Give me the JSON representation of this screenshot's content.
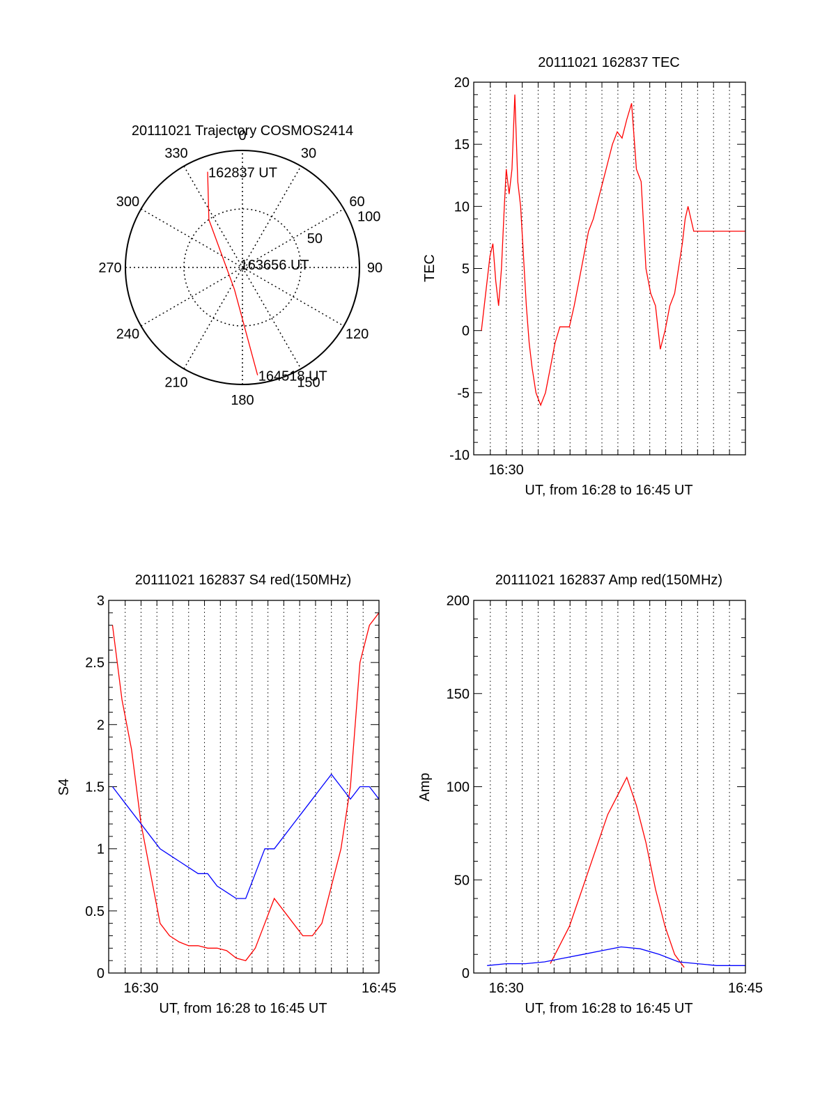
{
  "chart_data": [
    {
      "type": "polar",
      "title": "20111021 Trajectory COSMOS2414",
      "azimuth_labels": [
        "0",
        "30",
        "60",
        "90",
        "120",
        "150",
        "180",
        "210",
        "240",
        "270",
        "300",
        "330"
      ],
      "elevation_ring_labels": [
        "50",
        "100"
      ],
      "elevation_rings": [
        50,
        100
      ],
      "elevation_max": 100,
      "trajectory": {
        "color": "#ff0000",
        "points": [
          {
            "az": 340,
            "r": 87
          },
          {
            "az": 325,
            "r": 50
          },
          {
            "az": 200,
            "r": 20
          },
          {
            "az": 172,
            "r": 93
          }
        ],
        "labels": [
          {
            "text": "162837 UT",
            "az": 340,
            "r": 87
          },
          {
            "text": "163656 UT",
            "az": 320,
            "r": 4
          },
          {
            "text": "164518 UT",
            "az": 172,
            "r": 93
          }
        ]
      }
    },
    {
      "type": "line",
      "title": "20111021 162837 TEC",
      "xlabel": "UT, from 16:28 to 16:45 UT",
      "ylabel": "TEC",
      "xlim": [
        16.466,
        16.75
      ],
      "ylim": [
        -10,
        20
      ],
      "yticks": [
        "-10",
        "-5",
        "0",
        "5",
        "10",
        "15",
        "20"
      ],
      "xtick_labels": [
        {
          "x": 16.5,
          "label": "16:30"
        }
      ],
      "grid": true,
      "series": [
        {
          "color": "#ff0000",
          "x": [
            16.474,
            16.477,
            16.48,
            16.483,
            16.486,
            16.489,
            16.492,
            16.495,
            16.498,
            16.5,
            16.503,
            16.506,
            16.509,
            16.512,
            16.515,
            16.518,
            16.521,
            16.524,
            16.527,
            16.531,
            16.536,
            16.541,
            16.546,
            16.551,
            16.556,
            16.561,
            16.566,
            16.571,
            16.576,
            16.581,
            16.586,
            16.591,
            16.596,
            16.601,
            16.606,
            16.611,
            16.616,
            16.621,
            16.626,
            16.631,
            16.636,
            16.641,
            16.646,
            16.651,
            16.656,
            16.661,
            16.666,
            16.671,
            16.676,
            16.68,
            16.684,
            16.687,
            16.69,
            16.693,
            16.696,
            16.7,
            16.704,
            16.708,
            16.711,
            16.714,
            16.717,
            16.72,
            16.724,
            16.728,
            16.732,
            16.736,
            16.74,
            16.744,
            16.748,
            16.75
          ],
          "y": [
            0,
            2,
            4,
            6,
            7,
            4,
            2,
            5,
            10,
            13,
            11,
            13,
            19,
            12,
            10,
            6,
            2,
            -1,
            -3,
            -5,
            -6,
            -5,
            -3,
            -1,
            0.3,
            0.3,
            0.3,
            2,
            4,
            6,
            8,
            9,
            10.5,
            12,
            13.5,
            15,
            16,
            15.5,
            17,
            18.3,
            13,
            12,
            5,
            3,
            2,
            -1.5,
            0,
            2,
            3,
            5,
            7,
            9,
            10,
            9,
            8,
            8,
            8,
            8,
            8,
            8,
            8,
            8,
            8,
            8,
            8,
            8,
            8,
            8,
            8,
            8
          ]
        }
      ]
    },
    {
      "type": "line",
      "title": "20111021 162837 S4 red(150MHz)",
      "xlabel": "UT, from 16:28 to 16:45 UT",
      "ylabel": "S4",
      "xlim": [
        16.466,
        16.75
      ],
      "ylim": [
        0,
        3
      ],
      "yticks": [
        "0",
        "0.5",
        "1",
        "1.5",
        "2",
        "2.5",
        "3"
      ],
      "xtick_labels": [
        {
          "x": 16.5,
          "label": "16:30"
        },
        {
          "x": 16.75,
          "label": "16:45"
        }
      ],
      "grid": true,
      "series": [
        {
          "color": "#ff0000",
          "x": [
            16.47,
            16.48,
            16.49,
            16.5,
            16.51,
            16.52,
            16.53,
            16.54,
            16.55,
            16.56,
            16.57,
            16.58,
            16.59,
            16.6,
            16.61,
            16.62,
            16.63,
            16.64,
            16.65,
            16.66,
            16.67,
            16.68,
            16.69,
            16.7,
            16.71,
            16.72,
            16.73,
            16.74,
            16.75
          ],
          "y": [
            2.8,
            2.2,
            1.8,
            1.2,
            0.8,
            0.4,
            0.3,
            0.25,
            0.22,
            0.22,
            0.2,
            0.2,
            0.18,
            0.12,
            0.1,
            0.2,
            0.4,
            0.6,
            0.5,
            0.4,
            0.3,
            0.3,
            0.4,
            0.7,
            1.0,
            1.5,
            2.5,
            2.8,
            2.9
          ]
        },
        {
          "color": "#0000ff",
          "x": [
            16.47,
            16.48,
            16.49,
            16.5,
            16.51,
            16.52,
            16.53,
            16.54,
            16.55,
            16.56,
            16.57,
            16.58,
            16.59,
            16.6,
            16.61,
            16.62,
            16.63,
            16.64,
            16.65,
            16.66,
            16.67,
            16.68,
            16.69,
            16.7,
            16.71,
            16.72,
            16.73,
            16.74,
            16.75
          ],
          "y": [
            1.5,
            1.4,
            1.3,
            1.2,
            1.1,
            1.0,
            0.95,
            0.9,
            0.85,
            0.8,
            0.8,
            0.7,
            0.65,
            0.6,
            0.6,
            0.8,
            1.0,
            1.0,
            1.1,
            1.2,
            1.3,
            1.4,
            1.5,
            1.6,
            1.5,
            1.4,
            1.5,
            1.5,
            1.4
          ]
        }
      ]
    },
    {
      "type": "line",
      "title": "20111021 162837 Amp red(150MHz)",
      "xlabel": "UT, from 16:28 to 16:45 UT",
      "ylabel": "Amp",
      "xlim": [
        16.466,
        16.75
      ],
      "ylim": [
        0,
        200
      ],
      "yticks": [
        "0",
        "50",
        "100",
        "150",
        "200"
      ],
      "xtick_labels": [
        {
          "x": 16.5,
          "label": "16:30"
        },
        {
          "x": 16.75,
          "label": "16:45"
        }
      ],
      "grid": true,
      "series": [
        {
          "color": "#ff0000",
          "x": [
            16.546,
            16.556,
            16.566,
            16.576,
            16.586,
            16.596,
            16.606,
            16.616,
            16.626,
            16.636,
            16.646,
            16.656,
            16.666,
            16.676,
            16.686
          ],
          "y": [
            5,
            15,
            25,
            40,
            55,
            70,
            85,
            95,
            105,
            90,
            70,
            45,
            25,
            10,
            3
          ]
        },
        {
          "color": "#0000ff",
          "x": [
            16.48,
            16.5,
            16.52,
            16.54,
            16.56,
            16.58,
            16.6,
            16.62,
            16.64,
            16.66,
            16.68,
            16.7,
            16.72,
            16.74,
            16.75
          ],
          "y": [
            4,
            5,
            5,
            6,
            8,
            10,
            12,
            14,
            13,
            10,
            6,
            5,
            4,
            4,
            4
          ]
        }
      ]
    }
  ]
}
